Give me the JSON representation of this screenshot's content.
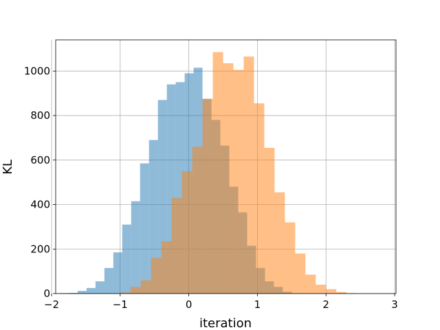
{
  "chart_data": {
    "type": "bar",
    "title": "",
    "xlabel": "iteration",
    "ylabel": "KL",
    "xlim": [
      -1.94,
      3.02
    ],
    "ylim": [
      0,
      1140
    ],
    "xticks": [
      -2,
      -1,
      0,
      1,
      2,
      3
    ],
    "xtick_labels": [
      "−2",
      "−1",
      "0",
      "1",
      "2",
      "3"
    ],
    "yticks": [
      0,
      200,
      400,
      600,
      800,
      1000
    ],
    "ytick_labels": [
      "0",
      "200",
      "400",
      "600",
      "800",
      "1000"
    ],
    "grid": true,
    "legend": "none",
    "series": [
      {
        "color": "#1f77b4",
        "alpha": 0.5,
        "bins": [
          {
            "x0": -1.88,
            "x1": -1.75,
            "value": 2
          },
          {
            "x0": -1.75,
            "x1": -1.62,
            "value": 3
          },
          {
            "x0": -1.62,
            "x1": -1.49,
            "value": 12
          },
          {
            "x0": -1.49,
            "x1": -1.36,
            "value": 25
          },
          {
            "x0": -1.36,
            "x1": -1.23,
            "value": 55
          },
          {
            "x0": -1.23,
            "x1": -1.1,
            "value": 115
          },
          {
            "x0": -1.1,
            "x1": -0.97,
            "value": 185
          },
          {
            "x0": -0.97,
            "x1": -0.84,
            "value": 310
          },
          {
            "x0": -0.84,
            "x1": -0.71,
            "value": 415
          },
          {
            "x0": -0.71,
            "x1": -0.58,
            "value": 585
          },
          {
            "x0": -0.58,
            "x1": -0.45,
            "value": 690
          },
          {
            "x0": -0.45,
            "x1": -0.32,
            "value": 870
          },
          {
            "x0": -0.32,
            "x1": -0.19,
            "value": 940
          },
          {
            "x0": -0.19,
            "x1": -0.06,
            "value": 950
          },
          {
            "x0": -0.06,
            "x1": 0.07,
            "value": 990
          },
          {
            "x0": 0.07,
            "x1": 0.2,
            "value": 1015
          },
          {
            "x0": 0.2,
            "x1": 0.33,
            "value": 875
          },
          {
            "x0": 0.33,
            "x1": 0.46,
            "value": 780
          },
          {
            "x0": 0.46,
            "x1": 0.59,
            "value": 665
          },
          {
            "x0": 0.59,
            "x1": 0.72,
            "value": 480
          },
          {
            "x0": 0.72,
            "x1": 0.85,
            "value": 365
          },
          {
            "x0": 0.85,
            "x1": 0.98,
            "value": 215
          },
          {
            "x0": 0.98,
            "x1": 1.11,
            "value": 115
          },
          {
            "x0": 1.11,
            "x1": 1.24,
            "value": 55
          },
          {
            "x0": 1.24,
            "x1": 1.37,
            "value": 30
          },
          {
            "x0": 1.37,
            "x1": 1.5,
            "value": 8
          },
          {
            "x0": 1.5,
            "x1": 1.63,
            "value": 2
          }
        ]
      },
      {
        "color": "#ff7f0e",
        "alpha": 0.5,
        "bins": [
          {
            "x0": -1.0,
            "x1": -0.85,
            "value": 5
          },
          {
            "x0": -0.85,
            "x1": -0.7,
            "value": 30
          },
          {
            "x0": -0.7,
            "x1": -0.55,
            "value": 60
          },
          {
            "x0": -0.55,
            "x1": -0.4,
            "value": 160
          },
          {
            "x0": -0.4,
            "x1": -0.25,
            "value": 235
          },
          {
            "x0": -0.25,
            "x1": -0.1,
            "value": 430
          },
          {
            "x0": -0.1,
            "x1": 0.05,
            "value": 550
          },
          {
            "x0": 0.05,
            "x1": 0.2,
            "value": 660
          },
          {
            "x0": 0.2,
            "x1": 0.35,
            "value": 875
          },
          {
            "x0": 0.35,
            "x1": 0.5,
            "value": 1085
          },
          {
            "x0": 0.5,
            "x1": 0.65,
            "value": 1035
          },
          {
            "x0": 0.65,
            "x1": 0.8,
            "value": 1005
          },
          {
            "x0": 0.8,
            "x1": 0.95,
            "value": 1065
          },
          {
            "x0": 0.95,
            "x1": 1.1,
            "value": 855
          },
          {
            "x0": 1.1,
            "x1": 1.25,
            "value": 655
          },
          {
            "x0": 1.25,
            "x1": 1.4,
            "value": 455
          },
          {
            "x0": 1.4,
            "x1": 1.55,
            "value": 320
          },
          {
            "x0": 1.55,
            "x1": 1.7,
            "value": 180
          },
          {
            "x0": 1.7,
            "x1": 1.85,
            "value": 85
          },
          {
            "x0": 1.85,
            "x1": 2.0,
            "value": 40
          },
          {
            "x0": 2.0,
            "x1": 2.15,
            "value": 20
          },
          {
            "x0": 2.15,
            "x1": 2.3,
            "value": 7
          },
          {
            "x0": 2.3,
            "x1": 2.45,
            "value": 2
          }
        ]
      }
    ]
  }
}
